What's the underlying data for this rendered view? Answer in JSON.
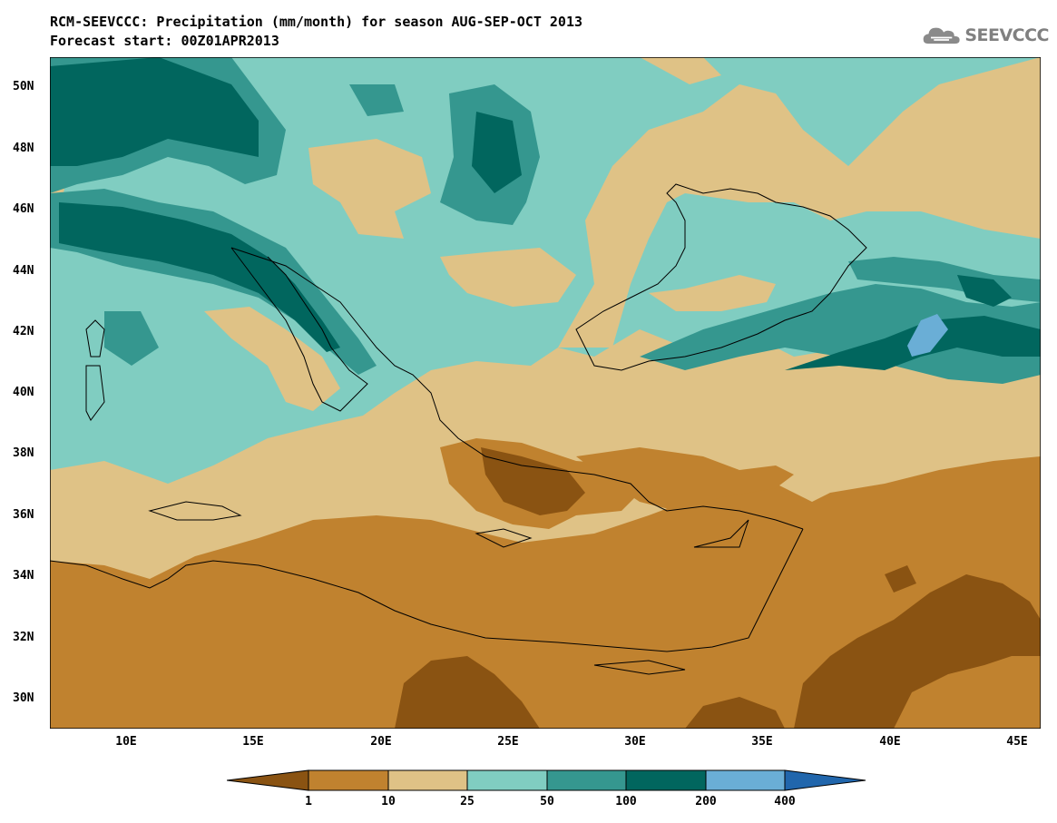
{
  "title": {
    "line1": "RCM-SEEVCCC: Precipitation (mm/month) for season AUG-SEP-OCT 2013",
    "line2": "Forecast start: 00Z01APR2013"
  },
  "logo": {
    "text": "SEEVCCC",
    "icon": "cloud-icon"
  },
  "map": {
    "variable": "Precipitation (mm/month)",
    "lat_labels": [
      "50N",
      "48N",
      "46N",
      "44N",
      "42N",
      "40N",
      "38N",
      "36N",
      "34N",
      "32N",
      "30N"
    ],
    "lon_labels": [
      "10E",
      "15E",
      "20E",
      "25E",
      "30E",
      "35E",
      "40E",
      "45E"
    ],
    "lat_range": [
      29,
      51
    ],
    "lon_range": [
      7,
      46
    ]
  },
  "colorbar": {
    "labels": [
      "1",
      "10",
      "25",
      "50",
      "100",
      "200",
      "400"
    ],
    "colors": [
      "#8a5312",
      "#c0822f",
      "#dfc286",
      "#80cdc1",
      "#35978f",
      "#01665e",
      "#6aaed6",
      "#2166ac"
    ]
  }
}
